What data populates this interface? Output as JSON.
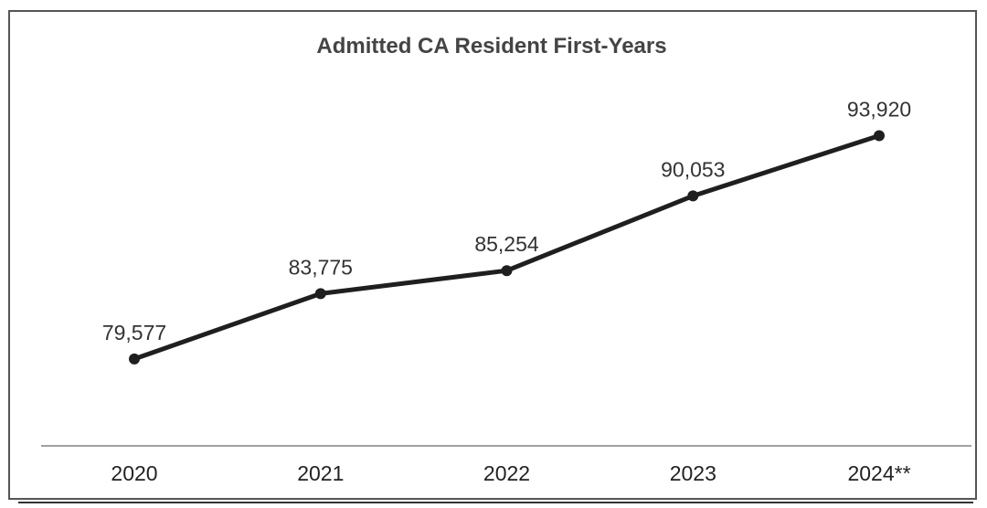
{
  "chart_data": {
    "type": "line",
    "title": "Admitted CA Resident First-Years",
    "xlabel": "",
    "ylabel": "",
    "categories": [
      "2020",
      "2021",
      "2022",
      "2023",
      "2024**"
    ],
    "values": [
      79577,
      83775,
      85254,
      90053,
      93920
    ],
    "data_labels": [
      "79,577",
      "83,775",
      "85,254",
      "90,053",
      "93,920"
    ],
    "ylim": [
      73000,
      97000
    ],
    "grid": false,
    "legend": "none",
    "colors": {
      "line": "#1f1f1f",
      "marker": "#1f1f1f",
      "baseline": "#a0a0a0",
      "frame": "#555555"
    }
  }
}
